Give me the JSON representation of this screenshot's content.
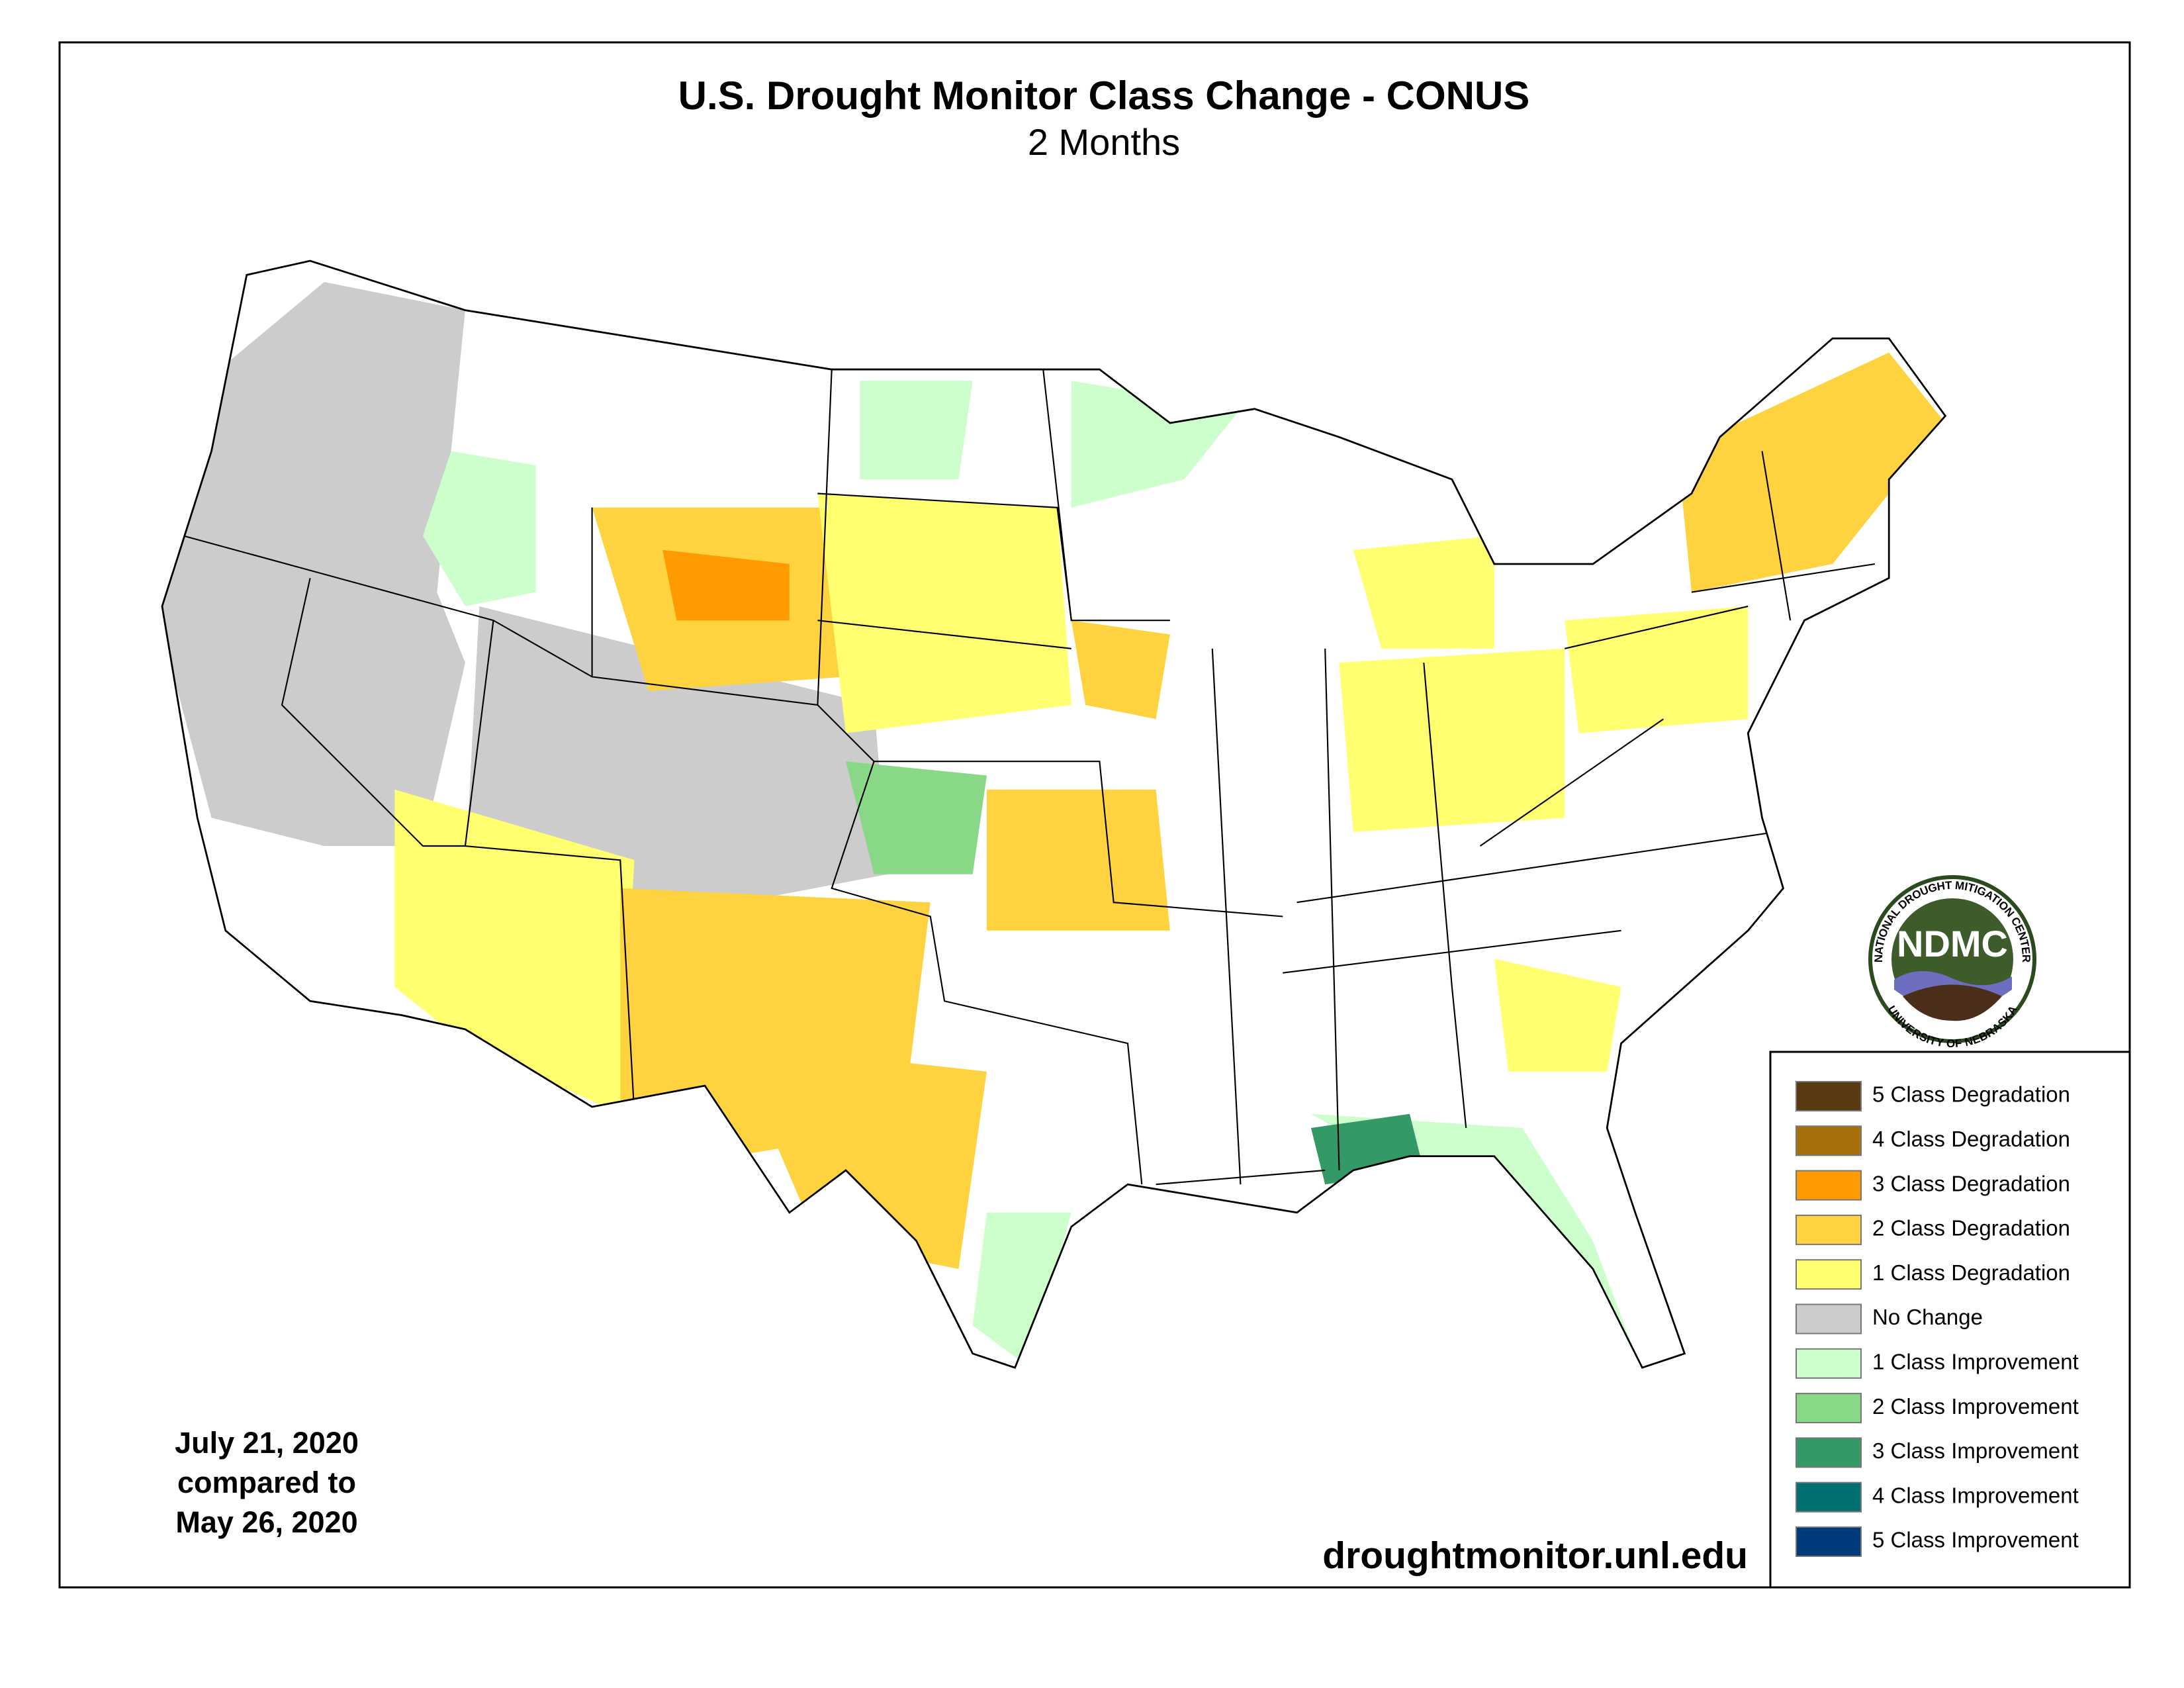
{
  "header": {
    "title": "U.S. Drought Monitor Class Change - CONUS",
    "subtitle": "2 Months"
  },
  "legend": [
    {
      "label": "5 Class Degradation",
      "color": "#5a3a10"
    },
    {
      "label": "4 Class Degradation",
      "color": "#a8700a"
    },
    {
      "label": "3 Class Degradation",
      "color": "#ff9a00"
    },
    {
      "label": "2 Class Degradation",
      "color": "#ffd33f"
    },
    {
      "label": "1 Class Degradation",
      "color": "#ffff70"
    },
    {
      "label": "No Change",
      "color": "#cccccc"
    },
    {
      "label": "1 Class Improvement",
      "color": "#ccffcc"
    },
    {
      "label": "2 Class Improvement",
      "color": "#88d888"
    },
    {
      "label": "3 Class Improvement",
      "color": "#339966"
    },
    {
      "label": "4 Class Improvement",
      "color": "#007070"
    },
    {
      "label": "5 Class Improvement",
      "color": "#003a7a"
    }
  ],
  "dates": [
    "July 21, 2020",
    "compared to",
    "May 26, 2020"
  ],
  "url": "droughtmonitor.unl.edu",
  "logo": {
    "abbr": "NDMC",
    "top": "NATIONAL DROUGHT MITIGATION CENTER",
    "bottom": "UNIVERSITY OF NEBRASKA"
  }
}
